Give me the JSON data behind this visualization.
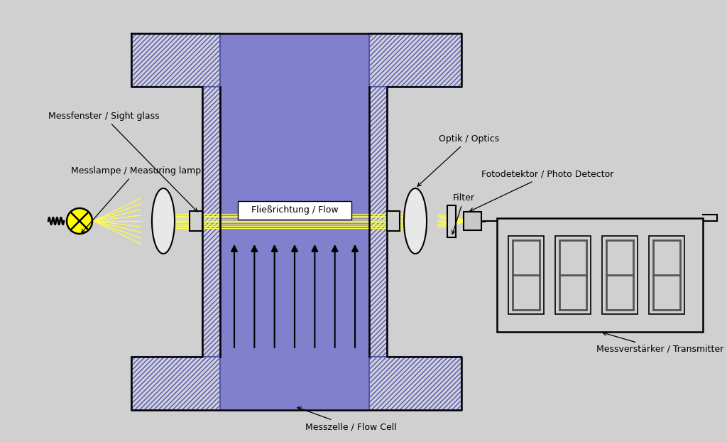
{
  "bg_color": "#d0d0d0",
  "blue_fill": "#8080cc",
  "hatch_fill": "#d0d0dc",
  "hatch_edge": "#5555aa",
  "yellow_beam": "#ffff44",
  "lamp_yellow": "#ffff00",
  "black": "#000000",
  "white": "#ffffff",
  "seg_dark": "#555555",
  "labels": {
    "sight_glass": "Messfenster / Sight glass",
    "lamp": "Messlampe / Measuring lamp",
    "optics": "Optik / Optics",
    "detector": "Fotodetektor / Photo Detector",
    "filter": "Filter",
    "flow_cell": "Messzelle / Flow Cell",
    "flow": "Fließrichtung / Flow",
    "transmitter": "Messverstärker / Transmitter"
  },
  "fig_width": 10.24,
  "fig_height": 6.22,
  "dpi": 100
}
